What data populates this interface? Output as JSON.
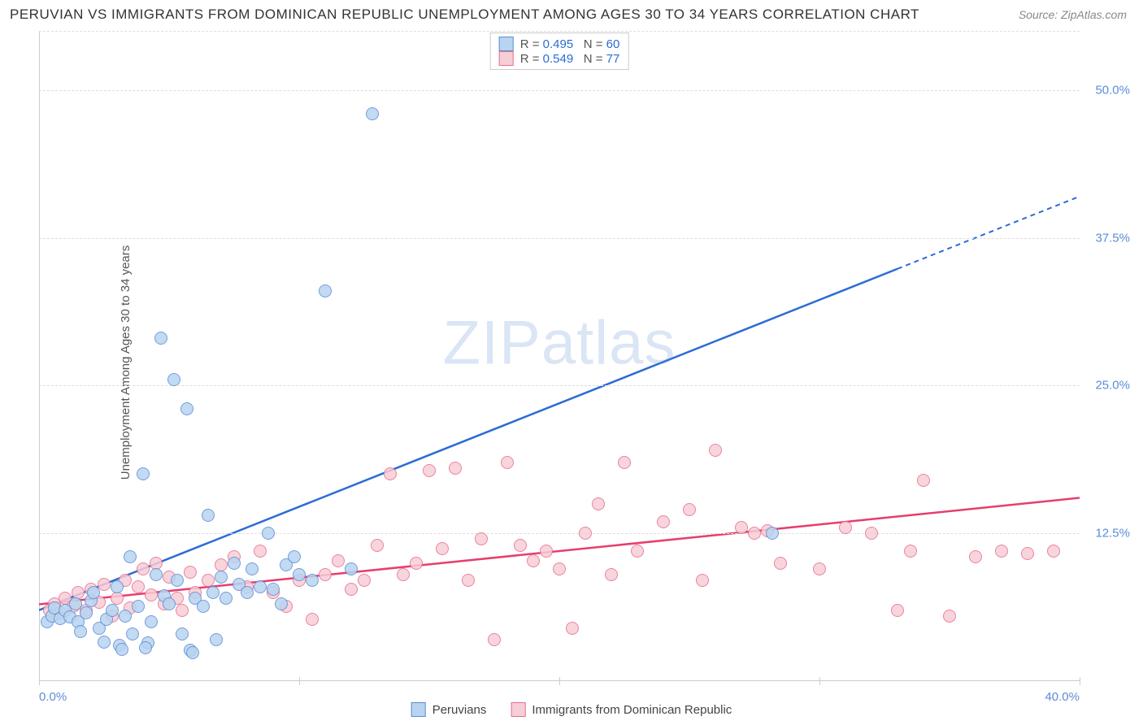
{
  "title": "PERUVIAN VS IMMIGRANTS FROM DOMINICAN REPUBLIC UNEMPLOYMENT AMONG AGES 30 TO 34 YEARS CORRELATION CHART",
  "source": "Source: ZipAtlas.com",
  "ylabel": "Unemployment Among Ages 30 to 34 years",
  "watermark_bold": "ZIP",
  "watermark_light": "atlas",
  "chart": {
    "type": "scatter",
    "xlim": [
      0,
      40
    ],
    "ylim": [
      0,
      55
    ],
    "x_ticks": [
      0,
      10,
      20,
      30,
      40
    ],
    "x_tick_labels": [
      "0.0%",
      "",
      "",
      "",
      "40.0%"
    ],
    "y_gridlines": [
      12.5,
      25.0,
      37.5,
      50.0
    ],
    "y_tick_labels": [
      "12.5%",
      "25.0%",
      "37.5%",
      "50.0%"
    ],
    "background_color": "#ffffff",
    "grid_color": "#dddddd",
    "tick_label_color": "#5b8dd6",
    "point_radius": 8,
    "series": [
      {
        "name": "Peruvians",
        "fill": "#b8d4f0",
        "stroke": "#5b8dd6",
        "trend_color": "#2b6cd4",
        "trend": {
          "y_at_x0": 6.0,
          "y_at_xmax": 41.0,
          "dash_from_x": 33
        },
        "R": "0.495",
        "N": "60",
        "points": [
          [
            0.3,
            5.0
          ],
          [
            0.5,
            5.5
          ],
          [
            0.6,
            6.2
          ],
          [
            0.8,
            5.3
          ],
          [
            1.0,
            6.0
          ],
          [
            1.2,
            5.4
          ],
          [
            1.4,
            6.5
          ],
          [
            1.5,
            5.0
          ],
          [
            1.6,
            4.2
          ],
          [
            1.8,
            5.8
          ],
          [
            2.0,
            6.8
          ],
          [
            2.1,
            7.5
          ],
          [
            2.3,
            4.5
          ],
          [
            2.5,
            3.3
          ],
          [
            2.6,
            5.2
          ],
          [
            2.8,
            6.0
          ],
          [
            3.0,
            8.0
          ],
          [
            3.1,
            3.0
          ],
          [
            3.3,
            5.5
          ],
          [
            3.5,
            10.5
          ],
          [
            3.6,
            4.0
          ],
          [
            3.8,
            6.3
          ],
          [
            4.0,
            17.5
          ],
          [
            4.2,
            3.2
          ],
          [
            4.3,
            5.0
          ],
          [
            4.5,
            9.0
          ],
          [
            4.7,
            29.0
          ],
          [
            4.8,
            7.2
          ],
          [
            5.0,
            6.5
          ],
          [
            5.2,
            25.5
          ],
          [
            5.3,
            8.5
          ],
          [
            5.5,
            4.0
          ],
          [
            5.7,
            23.0
          ],
          [
            5.8,
            2.6
          ],
          [
            6.0,
            7.0
          ],
          [
            6.3,
            6.3
          ],
          [
            6.5,
            14.0
          ],
          [
            6.7,
            7.5
          ],
          [
            6.8,
            3.5
          ],
          [
            7.0,
            8.8
          ],
          [
            7.2,
            7.0
          ],
          [
            7.5,
            10.0
          ],
          [
            7.7,
            8.2
          ],
          [
            8.0,
            7.5
          ],
          [
            8.2,
            9.5
          ],
          [
            8.5,
            8.0
          ],
          [
            8.8,
            12.5
          ],
          [
            9.0,
            7.8
          ],
          [
            9.3,
            6.5
          ],
          [
            9.5,
            9.8
          ],
          [
            9.8,
            10.5
          ],
          [
            10.0,
            9.0
          ],
          [
            10.5,
            8.5
          ],
          [
            11.0,
            33.0
          ],
          [
            12.0,
            9.5
          ],
          [
            12.8,
            48.0
          ],
          [
            5.9,
            2.4
          ],
          [
            4.1,
            2.8
          ],
          [
            3.2,
            2.7
          ],
          [
            28.2,
            12.5
          ]
        ]
      },
      {
        "name": "Immigrants from Dominican Republic",
        "fill": "#f7cdd6",
        "stroke": "#e76f8c",
        "trend_color": "#e63e6d",
        "trend": {
          "y_at_x0": 6.5,
          "y_at_xmax": 15.5,
          "dash_from_x": null
        },
        "R": "0.549",
        "N": "77",
        "points": [
          [
            0.4,
            6.0
          ],
          [
            0.6,
            6.5
          ],
          [
            0.8,
            5.8
          ],
          [
            1.0,
            7.0
          ],
          [
            1.3,
            6.3
          ],
          [
            1.5,
            7.5
          ],
          [
            1.8,
            6.0
          ],
          [
            2.0,
            7.8
          ],
          [
            2.3,
            6.7
          ],
          [
            2.5,
            8.2
          ],
          [
            2.8,
            5.5
          ],
          [
            3.0,
            7.0
          ],
          [
            3.3,
            8.5
          ],
          [
            3.5,
            6.2
          ],
          [
            3.8,
            8.0
          ],
          [
            4.0,
            9.5
          ],
          [
            4.3,
            7.3
          ],
          [
            4.5,
            10.0
          ],
          [
            4.8,
            6.5
          ],
          [
            5.0,
            8.8
          ],
          [
            5.3,
            7.0
          ],
          [
            5.5,
            6.0
          ],
          [
            5.8,
            9.2
          ],
          [
            6.0,
            7.5
          ],
          [
            6.5,
            8.5
          ],
          [
            7.0,
            9.8
          ],
          [
            7.5,
            10.5
          ],
          [
            8.0,
            8.0
          ],
          [
            8.5,
            11.0
          ],
          [
            9.0,
            7.5
          ],
          [
            9.5,
            6.3
          ],
          [
            10.0,
            8.5
          ],
          [
            10.5,
            5.2
          ],
          [
            11.0,
            9.0
          ],
          [
            11.5,
            10.2
          ],
          [
            12.0,
            7.8
          ],
          [
            12.5,
            8.5
          ],
          [
            13.0,
            11.5
          ],
          [
            13.5,
            17.5
          ],
          [
            14.0,
            9.0
          ],
          [
            14.5,
            10.0
          ],
          [
            15.0,
            17.8
          ],
          [
            15.5,
            11.2
          ],
          [
            16.0,
            18.0
          ],
          [
            16.5,
            8.5
          ],
          [
            17.0,
            12.0
          ],
          [
            17.5,
            3.5
          ],
          [
            18.0,
            18.5
          ],
          [
            18.5,
            11.5
          ],
          [
            19.0,
            10.2
          ],
          [
            19.5,
            11.0
          ],
          [
            20.0,
            9.5
          ],
          [
            20.5,
            4.5
          ],
          [
            21.0,
            12.5
          ],
          [
            21.5,
            15.0
          ],
          [
            22.0,
            9.0
          ],
          [
            22.5,
            18.5
          ],
          [
            23.0,
            11.0
          ],
          [
            24.0,
            13.5
          ],
          [
            25.0,
            14.5
          ],
          [
            25.5,
            8.5
          ],
          [
            26.0,
            19.5
          ],
          [
            27.0,
            13.0
          ],
          [
            27.5,
            12.5
          ],
          [
            28.0,
            12.7
          ],
          [
            28.5,
            10.0
          ],
          [
            30.0,
            9.5
          ],
          [
            31.0,
            13.0
          ],
          [
            32.0,
            12.5
          ],
          [
            33.0,
            6.0
          ],
          [
            33.5,
            11.0
          ],
          [
            34.0,
            17.0
          ],
          [
            35.0,
            5.5
          ],
          [
            36.0,
            10.5
          ],
          [
            37.0,
            11.0
          ],
          [
            38.0,
            10.8
          ],
          [
            39.0,
            11.0
          ]
        ]
      }
    ]
  },
  "legend": {
    "series1_label": "Peruvians",
    "series2_label": "Immigrants from Dominican Republic"
  }
}
